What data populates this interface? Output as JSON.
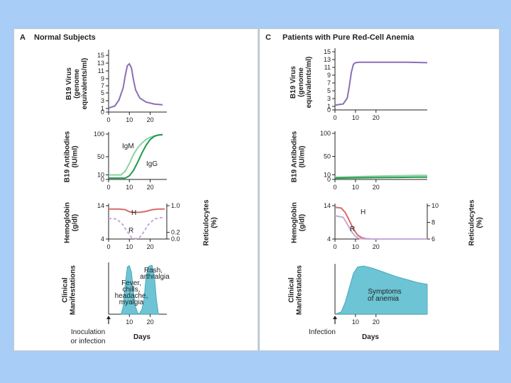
{
  "colors": {
    "virus": "#8a6fb8",
    "igm": "#8fd19e",
    "igg": "#1f9a4a",
    "hemoglobin": "#d86a6a",
    "reticulocytes": "#c5a9d8",
    "symptoms": "#6cc4d4",
    "background": "#a8cdf7"
  },
  "panel_a": {
    "letter": "A",
    "title": "Normal Subjects",
    "x_label": "Days",
    "event_label_line1": "Inoculation",
    "event_label_line2": "or infection",
    "rash_line1": "Rash,",
    "rash_line2": "arthralgia",
    "fever_lines": [
      "Fever,",
      "chills,",
      "headache,",
      "myalgia"
    ]
  },
  "panel_c": {
    "letter": "C",
    "title": "Patients with Pure Red-Cell Anemia",
    "x_label": "Days",
    "event_label": "Infection",
    "symptoms_line1": "Symptoms",
    "symptoms_line2": "of anemia"
  },
  "chart_data": [
    {
      "id": "a1",
      "panel": "A",
      "type": "line",
      "ylabel": [
        "B19 Virus",
        "(genome",
        "equivalents/ml)"
      ],
      "xticks": [
        "0",
        "10",
        "20"
      ],
      "xlim": [
        0,
        28
      ],
      "yticks": [
        "0",
        "1",
        "3",
        "5",
        "7",
        "9",
        "11",
        "13",
        "15"
      ],
      "ylim": [
        0,
        15
      ],
      "series": [
        {
          "name": "B19 Virus",
          "color": "virus",
          "x": [
            0,
            3,
            5,
            7,
            8,
            9,
            10,
            11,
            12,
            13,
            15,
            18,
            22,
            26
          ],
          "y": [
            1,
            1.5,
            3,
            6,
            9,
            11.5,
            12,
            11,
            8,
            5.5,
            3.5,
            2.5,
            2,
            1.8
          ]
        }
      ]
    },
    {
      "id": "a2",
      "panel": "A",
      "type": "line",
      "ylabel": [
        "B19 Antibodies",
        "(IU/ml)"
      ],
      "xticks": [
        "0",
        "10",
        "20"
      ],
      "xlim": [
        0,
        28
      ],
      "yticks": [
        "0",
        "10",
        "50",
        "100"
      ],
      "ylim": [
        0,
        100
      ],
      "series": [
        {
          "name": "IgM",
          "label": "IgM",
          "color": "igm",
          "x": [
            0,
            6,
            8,
            10,
            12,
            14,
            16,
            18,
            20,
            23,
            26
          ],
          "y": [
            10,
            10,
            18,
            35,
            55,
            70,
            80,
            88,
            93,
            97,
            98
          ]
        },
        {
          "name": "IgG",
          "label": "IgG",
          "color": "igg",
          "x": [
            0,
            8,
            10,
            12,
            14,
            16,
            18,
            20,
            22,
            24,
            26
          ],
          "y": [
            3,
            3,
            8,
            20,
            38,
            58,
            75,
            88,
            95,
            98,
            99
          ]
        }
      ]
    },
    {
      "id": "a3",
      "panel": "A",
      "type": "line",
      "ylabel": [
        "Hemoglobin",
        "(g/dl)"
      ],
      "ylabel_right": [
        "Reticulocytes",
        "(%)"
      ],
      "xticks": [
        "0",
        "10",
        "20"
      ],
      "xlim": [
        0,
        28
      ],
      "yticks": [
        "4",
        "14"
      ],
      "ylim": [
        4,
        14
      ],
      "yticks_right": [
        "0.0",
        "0.2",
        "1.0"
      ],
      "ylim_right": [
        0,
        1.0
      ],
      "series": [
        {
          "name": "Hemoglobin",
          "label": "H",
          "color": "hemoglobin",
          "axis": "left",
          "x": [
            0,
            5,
            8,
            10,
            12,
            15,
            18,
            21,
            24,
            27
          ],
          "y": [
            13,
            13,
            12.8,
            12.2,
            12,
            12,
            12.3,
            12.8,
            13,
            13
          ]
        },
        {
          "name": "Reticulocytes",
          "label": "R",
          "color": "reticulocytes",
          "axis": "right",
          "dashed": true,
          "x": [
            0,
            4,
            7,
            9,
            11,
            13,
            15,
            17,
            19,
            22,
            25,
            27
          ],
          "y": [
            0.62,
            0.6,
            0.42,
            0.22,
            0.05,
            0.01,
            0.05,
            0.22,
            0.42,
            0.6,
            0.64,
            0.64
          ]
        }
      ]
    },
    {
      "id": "a4",
      "panel": "A",
      "type": "area",
      "ylabel": [
        "Clinical",
        "Manifestations"
      ],
      "xticks": [
        "10",
        "20"
      ],
      "xlim": [
        0,
        28
      ],
      "ylim": [
        0,
        1
      ],
      "series": [
        {
          "name": "Clinical Manifestations",
          "color": "symptoms",
          "x": [
            6,
            7,
            8,
            9,
            10,
            11,
            12,
            13,
            14,
            15,
            16,
            17,
            18,
            19,
            20,
            21,
            22,
            23,
            24
          ],
          "y": [
            0,
            0.15,
            0.6,
            0.95,
            0.98,
            0.85,
            0.45,
            0.15,
            0.02,
            0.02,
            0.1,
            0.3,
            0.75,
            0.95,
            0.98,
            0.98,
            0.8,
            0.3,
            0
          ]
        }
      ]
    },
    {
      "id": "c1",
      "panel": "C",
      "type": "line",
      "ylabel": [
        "B19 Virus",
        "(genome",
        "equivalents/ml)"
      ],
      "xticks": [
        "0",
        "10",
        "20"
      ],
      "xlim": [
        0,
        45
      ],
      "yticks": [
        "0",
        "1",
        "3",
        "5",
        "7",
        "9",
        "11",
        "13",
        "15"
      ],
      "ylim": [
        0,
        15
      ],
      "series": [
        {
          "name": "B19 Virus",
          "color": "virus",
          "x": [
            0,
            4,
            6,
            7,
            8,
            9,
            10,
            12,
            15,
            25,
            35,
            45
          ],
          "y": [
            1.2,
            1.5,
            3,
            6,
            9.5,
            11.5,
            11.9,
            12,
            12,
            12,
            12,
            11.9
          ]
        }
      ]
    },
    {
      "id": "c2",
      "panel": "C",
      "type": "line",
      "ylabel": [
        "B19 Antibodies",
        "(IU/ml)"
      ],
      "xticks": [
        "0",
        "10",
        "20"
      ],
      "xlim": [
        0,
        45
      ],
      "yticks": [
        "0",
        "10",
        "50",
        "100"
      ],
      "ylim": [
        0,
        100
      ],
      "series": [
        {
          "name": "IgM",
          "color": "igm",
          "x": [
            0,
            10,
            20,
            30,
            40,
            45
          ],
          "y": [
            5,
            6,
            7,
            8,
            9,
            9
          ]
        },
        {
          "name": "IgG",
          "color": "igg",
          "x": [
            0,
            10,
            20,
            30,
            40,
            45
          ],
          "y": [
            3,
            3.5,
            4,
            4.5,
            5,
            5
          ]
        }
      ]
    },
    {
      "id": "c3",
      "panel": "C",
      "type": "line",
      "ylabel": [
        "Hemoglobin",
        "(g/dl)"
      ],
      "ylabel_right": [
        "Reticulocytes",
        "(%)"
      ],
      "xticks": [
        "0",
        "10",
        "20"
      ],
      "xlim": [
        0,
        45
      ],
      "yticks": [
        "4",
        "14"
      ],
      "ylim": [
        4,
        14
      ],
      "yticks_right": [
        "6",
        "8",
        "10"
      ],
      "ylim_right": [
        6,
        10
      ],
      "series": [
        {
          "name": "Hemoglobin",
          "label": "H",
          "color": "hemoglobin",
          "axis": "left",
          "x": [
            0,
            3,
            5,
            7,
            9,
            11,
            13,
            15,
            18,
            25,
            35,
            45
          ],
          "y": [
            13.5,
            13.3,
            12,
            9.5,
            7,
            5.2,
            4.4,
            4.1,
            4,
            4,
            4,
            4
          ]
        },
        {
          "name": "Reticulocytes",
          "label": "R",
          "color": "reticulocytes",
          "axis": "right",
          "x": [
            0,
            4,
            6,
            8,
            10,
            12,
            15,
            20,
            45
          ],
          "y": [
            8.8,
            8.6,
            7.8,
            6.9,
            6.3,
            6.05,
            6,
            6,
            6
          ]
        }
      ]
    },
    {
      "id": "c4",
      "panel": "C",
      "type": "area",
      "ylabel": [
        "Clinical",
        "Manifestations"
      ],
      "xticks": [
        "10",
        "20"
      ],
      "xlim": [
        0,
        45
      ],
      "ylim": [
        0,
        1
      ],
      "series": [
        {
          "name": "Symptoms of anemia",
          "color": "symptoms",
          "x": [
            0,
            3,
            5,
            7,
            9,
            11,
            14,
            18,
            22,
            26,
            30,
            35,
            40,
            45
          ],
          "y": [
            0,
            0.05,
            0.25,
            0.55,
            0.85,
            0.98,
            1.0,
            0.96,
            0.9,
            0.84,
            0.78,
            0.72,
            0.66,
            0.62
          ]
        }
      ]
    }
  ]
}
